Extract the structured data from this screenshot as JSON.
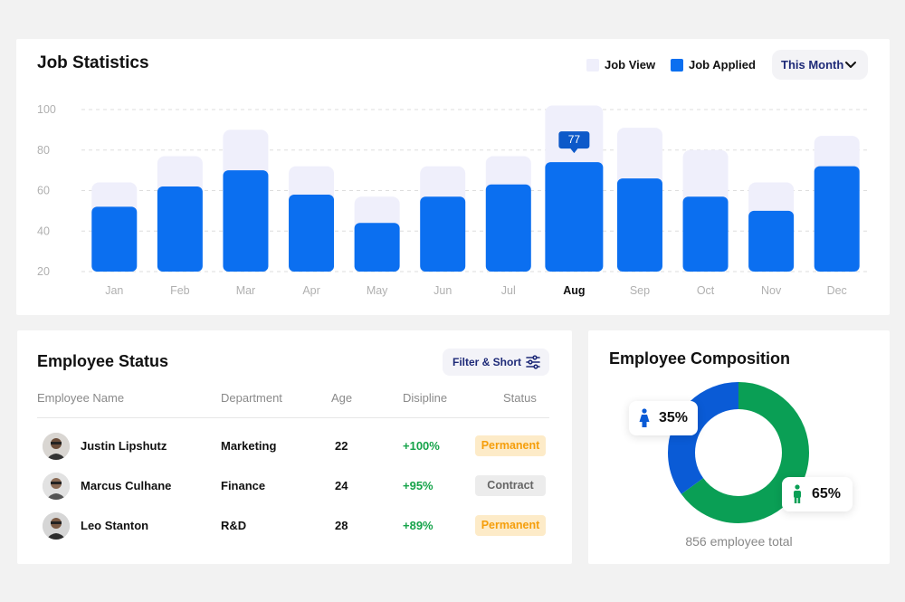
{
  "job_stats": {
    "title": "Job Statistics",
    "legend": [
      {
        "label": "Job View",
        "color": "#efeffb"
      },
      {
        "label": "Job Applied",
        "color": "#0b6ff0"
      }
    ],
    "period_select": "This Month",
    "tooltip": "77"
  },
  "chart_data": {
    "type": "bar",
    "categories": [
      "Jan",
      "Feb",
      "Mar",
      "Apr",
      "May",
      "Jun",
      "Jul",
      "Aug",
      "Sep",
      "Oct",
      "Nov",
      "Dec"
    ],
    "series": [
      {
        "name": "Job View",
        "values": [
          64,
          77,
          90,
          72,
          57,
          72,
          77,
          102,
          91,
          80,
          64,
          87
        ]
      },
      {
        "name": "Job Applied",
        "values": [
          52,
          62,
          70,
          58,
          44,
          57,
          63,
          74,
          66,
          57,
          50,
          72
        ]
      }
    ],
    "highlight_category": "Aug",
    "y_ticks": [
      100,
      80,
      60,
      40,
      20
    ],
    "ylim": [
      20,
      100
    ],
    "grid": true,
    "colors": {
      "job_view": "#efeffb",
      "job_applied": "#0b6ff0",
      "tooltip": "#0d59c9"
    }
  },
  "employee_status": {
    "title": "Employee Status",
    "filter_label": "Filter & Short",
    "columns": [
      "Employee Name",
      "Department",
      "Age",
      "Disipline",
      "Status"
    ],
    "rows": [
      {
        "name": "Justin Lipshutz",
        "department": "Marketing",
        "age": "22",
        "discipline": "+100%",
        "status": "Permanent"
      },
      {
        "name": "Marcus Culhane",
        "department": "Finance",
        "age": "24",
        "discipline": "+95%",
        "status": "Contract"
      },
      {
        "name": "Leo Stanton",
        "department": "R&D",
        "age": "28",
        "discipline": "+89%",
        "status": "Permanent"
      }
    ]
  },
  "employee_composition": {
    "title": "Employee Composition",
    "female_pct": "35%",
    "male_pct": "65%",
    "female_value": 35,
    "male_value": 65,
    "female_color": "#0a5bd6",
    "male_color": "#0a9f55",
    "total_label": "856 employee total"
  }
}
